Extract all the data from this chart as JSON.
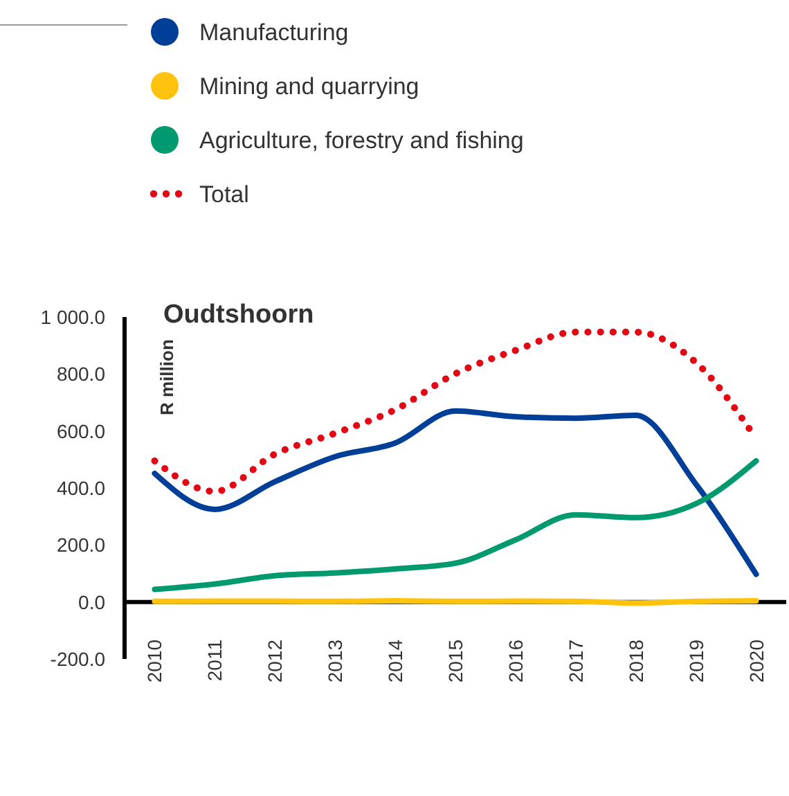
{
  "chart_data": {
    "type": "line",
    "title": "Oudtshoorn",
    "ylabel": "R million",
    "x": [
      2010,
      2011,
      2012,
      2013,
      2014,
      2015,
      2016,
      2017,
      2018,
      2019,
      2020
    ],
    "xlim": [
      2009.5,
      2020.5
    ],
    "xticks": [
      2010,
      2011,
      2012,
      2013,
      2014,
      2015,
      2016,
      2017,
      2018,
      2019,
      2020
    ],
    "ylim": [
      -200,
      1000
    ],
    "yticks": [
      {
        "value": -200,
        "label": "-200.0"
      },
      {
        "value": 0,
        "label": "0.0"
      },
      {
        "value": 200,
        "label": "200.0"
      },
      {
        "value": 400,
        "label": "400.0"
      },
      {
        "value": 600,
        "label": "600.0"
      },
      {
        "value": 800,
        "label": "800.0"
      },
      {
        "value": 1000,
        "label": "1 000.0"
      }
    ],
    "legend": "top",
    "grid": false,
    "marker": "none",
    "series": [
      {
        "name": "Manufacturing",
        "color": "#003f98",
        "line_style": "solid",
        "values": [
          451,
          325,
          422,
          510,
          558,
          670,
          650,
          645,
          655,
          413,
          97
        ]
      },
      {
        "name": "Mining and quarrying",
        "color": "#ffc20e",
        "line_style": "solid",
        "values": [
          2,
          3,
          3,
          2,
          4,
          2,
          3,
          2,
          -4,
          2,
          4
        ]
      },
      {
        "name": "Agriculture, forestry and fishing",
        "color": "#009a6e",
        "line_style": "solid",
        "values": [
          44,
          63,
          92,
          102,
          116,
          136,
          218,
          306,
          296,
          345,
          495
        ]
      },
      {
        "name": "Total",
        "color": "#e30613",
        "line_style": "dotted",
        "values": [
          495,
          388,
          519,
          592,
          675,
          801,
          883,
          947,
          947,
          840,
          573
        ]
      }
    ]
  }
}
